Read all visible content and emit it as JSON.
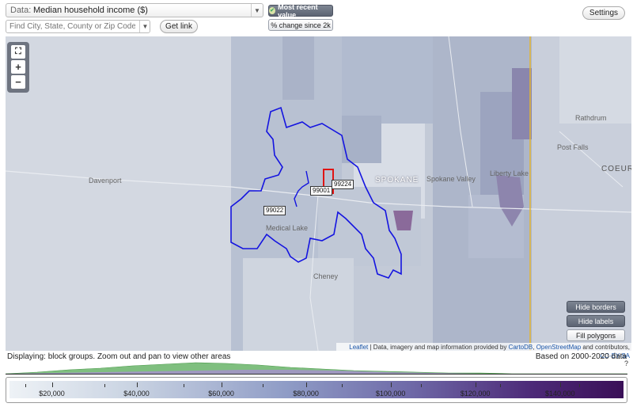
{
  "toolbar": {
    "data_label": "Data:",
    "data_value": "Median household income ($)",
    "search_placeholder": "Find City, State, County or Zip Code",
    "get_link": "Get link",
    "toggle_recent": "Most recent value",
    "toggle_change": "% change since 2k",
    "settings": "Settings"
  },
  "map": {
    "zoom_in": "+",
    "zoom_out": "−",
    "fullscreen": "⛶",
    "labels": {
      "spokane": "SPOKANE",
      "spokane_valley": "Spokane Valley",
      "davenport": "Davenport",
      "medical_lake": "Medical Lake",
      "cheney": "Cheney",
      "liberty_lake": "Liberty Lake",
      "post_falls": "Post Falls",
      "rathdrum": "Rathdrum",
      "coeur": "COEUR"
    },
    "zips": [
      "99224",
      "99001",
      "99022"
    ],
    "buttons": {
      "hide_borders": "Hide borders",
      "hide_labels": "Hide labels",
      "fill_polygons": "Fill polygons"
    },
    "attribution": {
      "leaflet": "Leaflet",
      "text1": " | Data, imagery and map information provided by ",
      "cartodb": "CartoDB",
      "text2": ", ",
      "osm": "OpenStreetMap",
      "text3": " and contributors, ",
      "license": "CC-BY-SA"
    }
  },
  "status": {
    "displaying": "Displaying: block groups. Zoom out and pan to view other areas",
    "based_on": "Based on 2000-2020 data",
    "help": "?"
  },
  "legend": {
    "ticks": [
      "$20,000",
      "$40,000",
      "$60,000",
      "$80,000",
      "$100,000",
      "$120,000",
      "$140,000"
    ],
    "min": 10000,
    "max": 155000,
    "tick_values": [
      20000,
      40000,
      60000,
      80000,
      100000,
      120000,
      140000
    ]
  }
}
